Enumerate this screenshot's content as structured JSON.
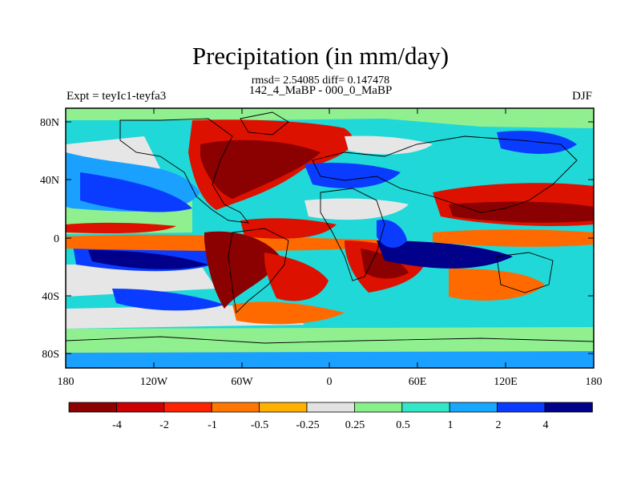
{
  "header": {
    "title": "Precipitation (in mm/day)",
    "stats": "rmsd= 2.54085 diff= 0.147478",
    "periods": "142_4_MaBP - 000_0_MaBP",
    "experiment": "Expt = teyIc1-teyfa3",
    "season": "DJF"
  },
  "map": {
    "y_ticks": [
      "80N",
      "40N",
      "0",
      "40S",
      "80S"
    ],
    "x_ticks": [
      "180",
      "120W",
      "60W",
      "0",
      "60E",
      "120E",
      "180"
    ]
  },
  "colorbar": {
    "labels": [
      "-4",
      "-2",
      "-1",
      "-0.5",
      "-0.25",
      "0.25",
      "0.5",
      "1",
      "2",
      "4"
    ],
    "colors": [
      "#8b0000",
      "#cc0000",
      "#ff2200",
      "#ff7700",
      "#ffb000",
      "#e2e2e2",
      "#88f088",
      "#33e8c8",
      "#18a8ff",
      "#0a3cff",
      "#00008b"
    ]
  },
  "palette": {
    "dry_strong": "#8b0000",
    "dry": "#dd1100",
    "dry_mild": "#ff6a00",
    "neutral": "#e6e6e6",
    "wet_mild": "#90f090",
    "wet": "#20d8d8",
    "wet_more": "#1aa0ff",
    "wet_strong": "#0a3cff",
    "wet_max": "#00008b"
  }
}
